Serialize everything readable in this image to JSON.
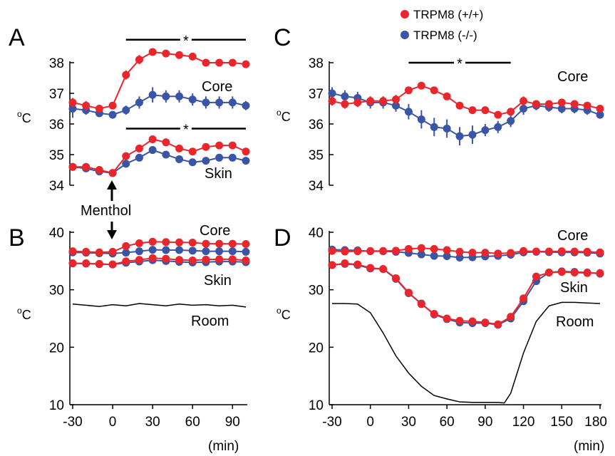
{
  "colors": {
    "wt": "#e8262b",
    "ko": "#3b55a6",
    "ink": "#000000"
  },
  "legend": {
    "wt": "TRPM8 (+/+)",
    "ko": "TRPM8 (-/-)"
  },
  "labels": {
    "core": "Core",
    "skin": "Skin",
    "room": "Room",
    "menthol": "Menthol",
    "star": "*",
    "ylabel_base": "C",
    "ylabel_sup": "o",
    "xunit": "(min)"
  },
  "chart_data": [
    {
      "panel": "A",
      "type": "line",
      "xlim": [
        -30,
        100
      ],
      "ylim": [
        34,
        38.5
      ],
      "yticks": [
        34,
        35,
        36,
        37,
        38
      ],
      "x": [
        -30,
        -20,
        -10,
        0,
        10,
        20,
        30,
        40,
        50,
        60,
        70,
        80,
        90,
        100
      ],
      "series": [
        {
          "name": "TRPM8 (+/+)",
          "group": "core",
          "values": [
            36.7,
            36.6,
            36.5,
            36.6,
            37.6,
            38.1,
            38.35,
            38.3,
            38.25,
            38.2,
            38.0,
            38.0,
            38.0,
            37.95
          ],
          "err": [
            0.15,
            0.15,
            0.1,
            0.1,
            0.15,
            0.15,
            0.1,
            0.1,
            0.1,
            0.1,
            0.1,
            0.1,
            0.1,
            0.1
          ]
        },
        {
          "name": "TRPM8 (-/-)",
          "group": "core",
          "values": [
            36.5,
            36.45,
            36.35,
            36.3,
            36.45,
            36.7,
            36.95,
            36.9,
            36.9,
            36.8,
            36.7,
            36.7,
            36.7,
            36.6
          ],
          "err": [
            0.3,
            0.15,
            0.1,
            0.1,
            0.15,
            0.2,
            0.25,
            0.2,
            0.2,
            0.2,
            0.2,
            0.2,
            0.2,
            0.15
          ]
        },
        {
          "name": "TRPM8 (+/+)",
          "group": "skin",
          "values": [
            34.6,
            34.6,
            34.5,
            34.4,
            34.95,
            35.2,
            35.5,
            35.4,
            35.2,
            35.1,
            35.25,
            35.3,
            35.3,
            35.1
          ],
          "err": [
            0.1,
            0.1,
            0.1,
            0.1,
            0.1,
            0.1,
            0.1,
            0.1,
            0.1,
            0.1,
            0.1,
            0.1,
            0.1,
            0.1
          ]
        },
        {
          "name": "TRPM8 (-/-)",
          "group": "skin",
          "values": [
            34.6,
            34.55,
            34.45,
            34.4,
            34.7,
            34.9,
            35.15,
            35.0,
            34.85,
            34.75,
            34.8,
            34.9,
            34.9,
            34.8
          ],
          "err": [
            0.1,
            0.1,
            0.1,
            0.1,
            0.1,
            0.1,
            0.1,
            0.1,
            0.1,
            0.1,
            0.1,
            0.1,
            0.1,
            0.1
          ]
        }
      ],
      "significance": [
        {
          "x0": 10,
          "x1": 100,
          "y": 38.75
        },
        {
          "x0": 10,
          "x1": 100,
          "y": 35.85
        }
      ]
    },
    {
      "panel": "B",
      "type": "line",
      "xlim": [
        -30,
        100
      ],
      "ylim": [
        10,
        40
      ],
      "yticks": [
        10,
        20,
        30,
        40
      ],
      "xticks": [
        -30,
        0,
        30,
        60,
        90
      ],
      "x": [
        -30,
        -20,
        -10,
        0,
        10,
        20,
        30,
        40,
        50,
        60,
        70,
        80,
        90,
        100
      ],
      "series": [
        {
          "name": "TRPM8 (+/+)",
          "group": "core",
          "values": [
            36.7,
            36.6,
            36.5,
            36.6,
            37.6,
            38.1,
            38.35,
            38.3,
            38.25,
            38.2,
            38.0,
            38.0,
            38.0,
            37.95
          ]
        },
        {
          "name": "TRPM8 (-/-)",
          "group": "core",
          "values": [
            36.5,
            36.45,
            36.35,
            36.3,
            36.45,
            36.7,
            36.95,
            36.9,
            36.9,
            36.8,
            36.7,
            36.7,
            36.7,
            36.6
          ]
        },
        {
          "name": "TRPM8 (+/+)",
          "group": "skin",
          "values": [
            34.6,
            34.6,
            34.5,
            34.4,
            34.95,
            35.2,
            35.5,
            35.4,
            35.2,
            35.1,
            35.25,
            35.3,
            35.3,
            35.1
          ]
        },
        {
          "name": "TRPM8 (-/-)",
          "group": "skin",
          "values": [
            34.6,
            34.55,
            34.45,
            34.4,
            34.7,
            34.9,
            35.15,
            35.0,
            34.85,
            34.75,
            34.8,
            34.9,
            34.9,
            34.8
          ]
        }
      ],
      "room": {
        "x": [
          -30,
          -20,
          -10,
          0,
          10,
          20,
          30,
          40,
          50,
          60,
          70,
          80,
          90,
          100
        ],
        "values": [
          27.5,
          27.3,
          27.1,
          27.4,
          27.2,
          27.6,
          27.4,
          27.2,
          27.5,
          27.3,
          27.4,
          27.2,
          27.3,
          27.0
        ]
      }
    },
    {
      "panel": "C",
      "type": "line",
      "xlim": [
        -30,
        180
      ],
      "ylim": [
        34,
        38.5
      ],
      "yticks": [
        34,
        35,
        36,
        37,
        38
      ],
      "x": [
        -30,
        -20,
        -10,
        0,
        10,
        20,
        30,
        40,
        50,
        60,
        70,
        80,
        90,
        100,
        110,
        120,
        130,
        140,
        150,
        160,
        170,
        180
      ],
      "series": [
        {
          "name": "TRPM8 (+/+)",
          "group": "core",
          "values": [
            36.75,
            36.65,
            36.7,
            36.75,
            36.75,
            36.8,
            37.1,
            37.25,
            37.1,
            36.9,
            36.6,
            36.45,
            36.45,
            36.3,
            36.4,
            36.75,
            36.65,
            36.65,
            36.7,
            36.65,
            36.6,
            36.5
          ],
          "err": [
            0.15,
            0.15,
            0.15,
            0.15,
            0.15,
            0.15,
            0.1,
            0.1,
            0.1,
            0.1,
            0.1,
            0.1,
            0.1,
            0.1,
            0.1,
            0.15,
            0.1,
            0.1,
            0.1,
            0.1,
            0.1,
            0.1
          ]
        },
        {
          "name": "TRPM8 (-/-)",
          "group": "core",
          "values": [
            37.0,
            36.9,
            36.85,
            36.7,
            36.7,
            36.6,
            36.4,
            36.15,
            35.9,
            35.85,
            35.6,
            35.65,
            35.8,
            35.9,
            36.1,
            36.5,
            36.6,
            36.55,
            36.5,
            36.5,
            36.45,
            36.3
          ],
          "err": [
            0.2,
            0.2,
            0.2,
            0.2,
            0.2,
            0.2,
            0.25,
            0.3,
            0.3,
            0.3,
            0.3,
            0.3,
            0.2,
            0.2,
            0.2,
            0.2,
            0.15,
            0.15,
            0.15,
            0.15,
            0.15,
            0.1
          ]
        }
      ],
      "significance": [
        {
          "x0": 30,
          "x1": 110,
          "y": 38.0
        }
      ]
    },
    {
      "panel": "D",
      "type": "line",
      "xlim": [
        -30,
        180
      ],
      "ylim": [
        10,
        40
      ],
      "yticks": [
        10,
        20,
        30,
        40
      ],
      "xticks": [
        -30,
        0,
        30,
        60,
        90,
        120,
        150,
        180
      ],
      "x": [
        -30,
        -20,
        -10,
        0,
        10,
        20,
        30,
        40,
        50,
        60,
        70,
        80,
        90,
        100,
        110,
        120,
        130,
        140,
        150,
        160,
        170,
        180
      ],
      "series": [
        {
          "name": "TRPM8 (+/+)",
          "group": "core",
          "values": [
            36.75,
            36.65,
            36.7,
            36.75,
            36.75,
            36.8,
            37.1,
            37.25,
            37.1,
            36.9,
            36.6,
            36.45,
            36.45,
            36.3,
            36.4,
            36.75,
            36.65,
            36.65,
            36.7,
            36.65,
            36.6,
            36.5
          ]
        },
        {
          "name": "TRPM8 (-/-)",
          "group": "core",
          "values": [
            37.0,
            36.9,
            36.85,
            36.7,
            36.7,
            36.6,
            36.4,
            36.15,
            35.9,
            35.85,
            35.6,
            35.65,
            35.8,
            35.9,
            36.1,
            36.5,
            36.6,
            36.55,
            36.5,
            36.5,
            36.45,
            36.3
          ]
        },
        {
          "name": "TRPM8 (+/+)",
          "group": "skin",
          "values": [
            34.3,
            34.6,
            34.4,
            33.8,
            33.6,
            32.0,
            29.5,
            27.5,
            25.8,
            25.0,
            24.6,
            24.5,
            24.3,
            24.0,
            25.3,
            28.5,
            32.3,
            33.0,
            33.1,
            33.0,
            32.9,
            32.9
          ]
        },
        {
          "name": "TRPM8 (-/-)",
          "group": "skin",
          "values": [
            34.3,
            34.5,
            34.3,
            33.7,
            33.6,
            31.9,
            29.4,
            27.6,
            25.7,
            24.9,
            24.3,
            24.2,
            24.2,
            23.9,
            25.0,
            28.0,
            31.5,
            33.0,
            33.2,
            33.1,
            33.0,
            32.8
          ]
        }
      ],
      "room": {
        "x": [
          -30,
          -20,
          -10,
          0,
          10,
          20,
          30,
          40,
          50,
          60,
          70,
          80,
          90,
          100,
          105,
          110,
          120,
          130,
          140,
          150,
          160,
          170,
          180
        ],
        "values": [
          27.6,
          27.6,
          27.5,
          26.0,
          22.5,
          18.5,
          15.5,
          13.2,
          11.6,
          11.0,
          10.5,
          10.4,
          10.4,
          10.4,
          10.3,
          12.0,
          19.0,
          24.5,
          27.2,
          27.8,
          27.8,
          27.7,
          27.6
        ]
      }
    }
  ]
}
